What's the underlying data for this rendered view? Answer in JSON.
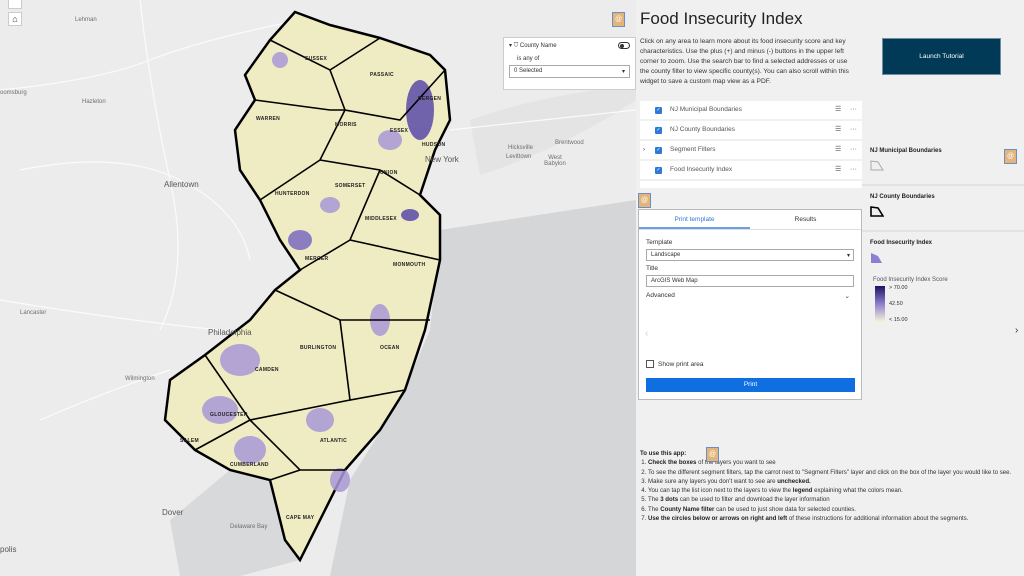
{
  "map": {
    "places": [
      {
        "name": "Lehman",
        "big": false
      },
      {
        "name": "Hazleton",
        "big": false
      },
      {
        "name": "Allentown",
        "big": true
      },
      {
        "name": "Philadelphia",
        "big": true
      },
      {
        "name": "Wilmington",
        "big": false
      },
      {
        "name": "Dover",
        "big": true
      },
      {
        "name": "Delaware Bay",
        "big": false
      },
      {
        "name": "polis",
        "big": true
      },
      {
        "name": "New York",
        "big": true
      },
      {
        "name": "Hicksville",
        "big": false
      },
      {
        "name": "Levittown",
        "big": false
      },
      {
        "name": "West Babylon",
        "big": false
      },
      {
        "name": "Brentwood",
        "big": false
      },
      {
        "name": "oomsburg",
        "big": false
      },
      {
        "name": "Lancaster",
        "big": false
      }
    ],
    "counties": [
      "SUSSEX",
      "PASSAIC",
      "BERGEN",
      "WARREN",
      "MORRIS",
      "ESSEX",
      "HUDSON",
      "UNION",
      "HUNTERDON",
      "SOMERSET",
      "MIDDLESEX",
      "MERCER",
      "MONMOUTH",
      "BURLINGTON",
      "OCEAN",
      "CAMDEN",
      "GLOUCESTER",
      "SALEM",
      "ATLANTIC",
      "CUMBERLAND",
      "CAPE MAY"
    ],
    "home_icon": "home-icon",
    "fill_colors": {
      "low": "#f4f1c9",
      "mid": "#b8a8dc",
      "high": "#3a2a8c",
      "land": "#ececec",
      "water": "#d4d6d8"
    }
  },
  "filter": {
    "field": "County Name",
    "operator": "is any of",
    "value": "0 Selected"
  },
  "panel": {
    "title": "Food Insecurity Index",
    "description": "Click on any area to learn more about its food insecurity score and key characteristics. Use the plus (+) and minus (-) buttons in the upper left corner to zoom. Use the search bar to find a selected addresses or use the county filter to view specific county(s). You can also scroll within this widget to save a custom map view as a PDF.",
    "launch_label": "Launch Tutorial",
    "layers": [
      {
        "name": "NJ Municipal Boundaries",
        "checked": true,
        "expandable": false
      },
      {
        "name": "NJ County Boundaries",
        "checked": true,
        "expandable": false
      },
      {
        "name": "Segment Filters",
        "checked": true,
        "expandable": true
      },
      {
        "name": "Food Insecurity Index",
        "checked": true,
        "expandable": false
      }
    ],
    "legend": {
      "sections": [
        "NJ Municipal Boundaries",
        "NJ County Boundaries",
        "Food Insecurity Index"
      ],
      "ramp_title": "Food Insecurity Index Score",
      "ramp_labels": [
        "> 70.00",
        "42.50",
        "< 15.00"
      ],
      "ramp_colors": [
        "#1c1461",
        "#8f7fd0",
        "#f7f5d6"
      ]
    },
    "print": {
      "tabs": [
        "Print template",
        "Results"
      ],
      "template_label": "Template",
      "template_value": "Landscape",
      "title_label": "Title",
      "title_value": "ArcGIS Web Map",
      "advanced_label": "Advanced",
      "show_area_label": "Show print area",
      "print_label": "Print"
    },
    "instructions": {
      "heading": "To use this app:",
      "items": [
        {
          "bold": "Check the boxes",
          "text": " of the layers you want to see"
        },
        {
          "bold": "",
          "text": "To see the different segment filters, tap the carrot next to \"Segment Filters\" layer and click on the box of the layer you would like to see."
        },
        {
          "bold": "",
          "text": "Make sure any layers you don't want to see are ",
          "bold2": "unchecked."
        },
        {
          "bold": "",
          "text": "You can tap the list icon next to the layers to view the ",
          "bold2": "legend",
          "tail": " explaining what the colors mean."
        },
        {
          "bold": "",
          "text": "The ",
          "bold2": "3 dots",
          "tail": " can be used to filter and download the layer information"
        },
        {
          "bold": "",
          "text": "The ",
          "bold2": "County Name filter",
          "tail": " can be used to just show data for selected counties."
        },
        {
          "bold": "Use the circles below or arrows on right and left",
          "text": " of these instructions for additional information about the segments."
        }
      ]
    },
    "accent": "#2f79d9"
  }
}
